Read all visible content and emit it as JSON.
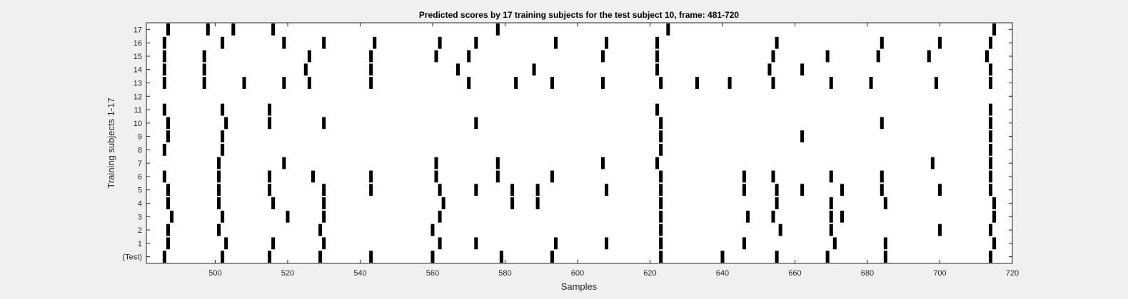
{
  "figure": {
    "background": "#f0f0f0",
    "axes_background": "#ffffff",
    "mark_color": "#000000"
  },
  "chart_data": {
    "type": "event-raster",
    "title": "Predicted scores by 17 training subjects for the test subject 10, frame: 481-720",
    "xlabel": "Samples",
    "ylabel": "Training subjects 1-17",
    "xlim": [
      481,
      720
    ],
    "x_ticks": [
      500,
      520,
      540,
      560,
      580,
      600,
      620,
      640,
      660,
      680,
      700,
      720
    ],
    "rows": [
      {
        "label": "(Test)",
        "events": [
          486,
          502,
          515,
          529,
          543,
          560,
          579,
          593,
          623,
          640,
          655,
          669,
          685,
          714
        ]
      },
      {
        "label": "1",
        "events": [
          487,
          503,
          516,
          530,
          562,
          572,
          594,
          608,
          623,
          646,
          671,
          685,
          715
        ]
      },
      {
        "label": "2",
        "events": [
          487,
          501,
          529,
          560,
          623,
          656,
          670,
          700,
          714
        ]
      },
      {
        "label": "3",
        "events": [
          488,
          502,
          520,
          530,
          562,
          623,
          647,
          654,
          670,
          673,
          715
        ]
      },
      {
        "label": "4",
        "events": [
          487,
          501,
          516,
          530,
          563,
          582,
          589,
          623,
          655,
          670,
          685,
          715
        ]
      },
      {
        "label": "5",
        "events": [
          487,
          501,
          515,
          530,
          543,
          562,
          572,
          582,
          589,
          608,
          623,
          646,
          655,
          662,
          673,
          684,
          700,
          714
        ]
      },
      {
        "label": "6",
        "events": [
          486,
          501,
          515,
          527,
          543,
          561,
          578,
          593,
          623,
          646,
          654,
          670,
          684,
          714
        ]
      },
      {
        "label": "7",
        "events": [
          501,
          519,
          561,
          578,
          607,
          622,
          698,
          714
        ]
      },
      {
        "label": "8",
        "events": [
          486,
          502,
          623,
          714
        ]
      },
      {
        "label": "9",
        "events": [
          487,
          502,
          623,
          662,
          714
        ]
      },
      {
        "label": "10",
        "events": [
          487,
          503,
          515,
          530,
          572,
          623,
          684,
          714
        ]
      },
      {
        "label": "11",
        "events": [
          486,
          502,
          515,
          622,
          714
        ]
      },
      {
        "label": "12",
        "events": []
      },
      {
        "label": "13",
        "events": [
          486,
          497,
          508,
          519,
          526,
          543,
          570,
          583,
          593,
          607,
          623,
          633,
          642,
          654,
          670,
          681,
          699,
          714
        ]
      },
      {
        "label": "14",
        "events": [
          486,
          497,
          525,
          543,
          567,
          588,
          622,
          653,
          662,
          714
        ]
      },
      {
        "label": "15",
        "events": [
          486,
          497,
          526,
          543,
          561,
          570,
          607,
          622,
          654,
          669,
          683,
          697,
          713
        ]
      },
      {
        "label": "16",
        "events": [
          486,
          502,
          519,
          530,
          544,
          562,
          572,
          594,
          608,
          622,
          655,
          684,
          700,
          714
        ]
      },
      {
        "label": "17",
        "events": [
          487,
          498,
          505,
          516,
          578,
          625,
          715
        ]
      }
    ]
  }
}
